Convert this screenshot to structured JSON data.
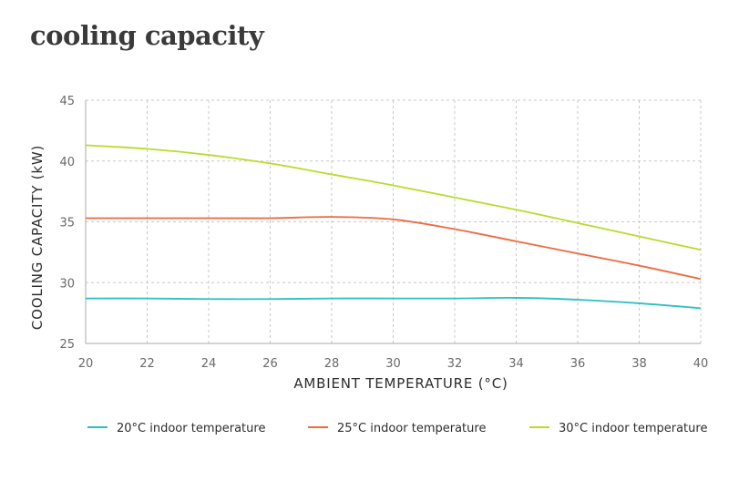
{
  "title": "cooling capacity",
  "chart_data": {
    "type": "line",
    "title": "cooling capacity",
    "xlabel": "AMBIENT TEMPERATURE  (°C)",
    "ylabel": "COOLING CAPACITY  (kW)",
    "xlim": [
      20,
      40
    ],
    "ylim": [
      25,
      45
    ],
    "xticks": [
      20,
      22,
      24,
      26,
      28,
      30,
      32,
      34,
      36,
      38,
      40
    ],
    "yticks": [
      25,
      30,
      35,
      40,
      45
    ],
    "grid": true,
    "legend_position": "bottom",
    "x": [
      20,
      22,
      24,
      26,
      28,
      30,
      32,
      34,
      36,
      38,
      40
    ],
    "series": [
      {
        "name": "20°C indoor temperature",
        "color": "#2bbfc2",
        "values": [
          28.7,
          28.7,
          28.65,
          28.65,
          28.7,
          28.7,
          28.7,
          28.75,
          28.6,
          28.3,
          27.9
        ]
      },
      {
        "name": "25°C indoor temperature",
        "color": "#ee6a3f",
        "values": [
          35.3,
          35.3,
          35.3,
          35.3,
          35.4,
          35.2,
          34.4,
          33.4,
          32.4,
          31.4,
          30.3
        ]
      },
      {
        "name": "30°C indoor temperature",
        "color": "#b9dc2a",
        "values": [
          41.3,
          41.0,
          40.5,
          39.8,
          38.9,
          38.0,
          37.0,
          36.0,
          34.9,
          33.8,
          32.7
        ]
      }
    ]
  }
}
